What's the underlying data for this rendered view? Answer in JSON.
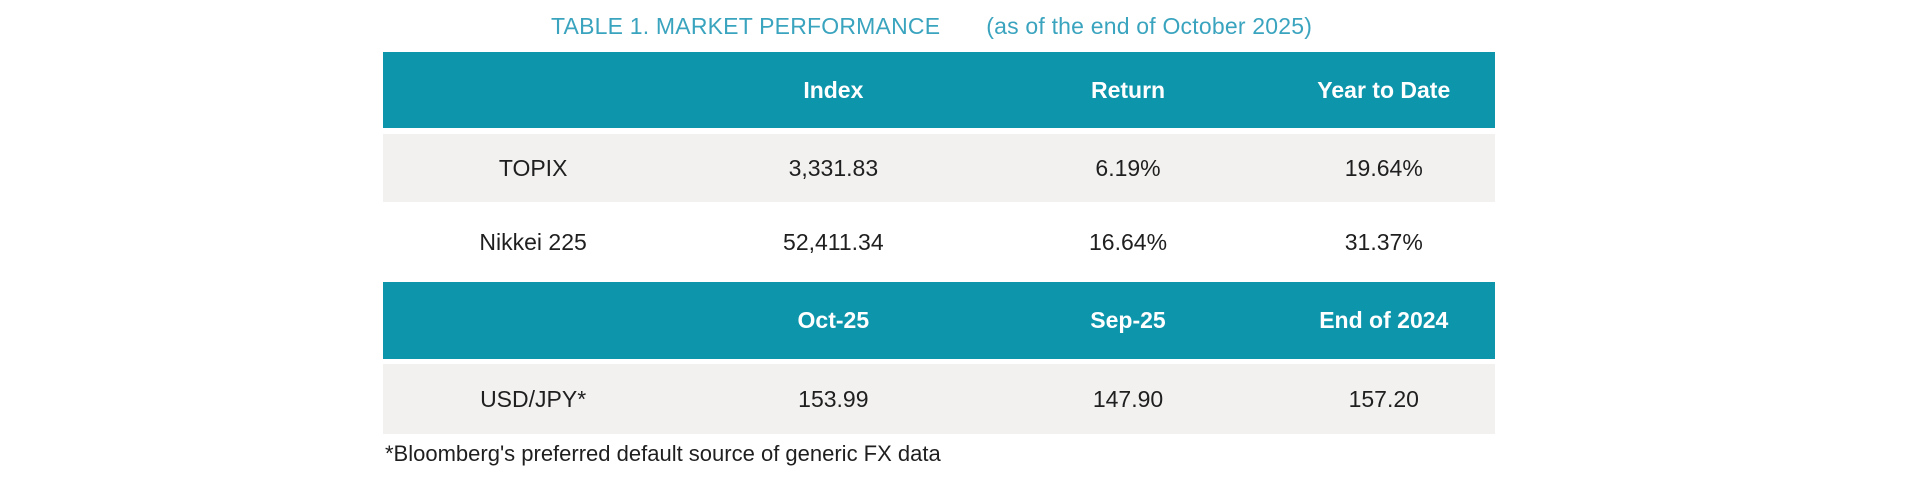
{
  "title": {
    "main": "TABLE 1. MARKET PERFORMANCE",
    "suffix": "(as of the end of October 2025)"
  },
  "colors": {
    "header_bg": "#0D95AC",
    "title_text": "#3AA4BF",
    "alt_row_bg": "#F2F1F0",
    "header_text": "#FFFFFF",
    "body_text": "#1F1F1F"
  },
  "table1": {
    "headers": [
      "",
      "Index",
      "Return",
      "Year to Date"
    ],
    "rows": [
      {
        "label": "TOPIX",
        "values": [
          "3,331.83",
          "6.19%",
          "19.64%"
        ]
      },
      {
        "label": "Nikkei 225",
        "values": [
          "52,411.34",
          "16.64%",
          "31.37%"
        ]
      }
    ]
  },
  "table2": {
    "headers": [
      "",
      "Oct-25",
      "Sep-25",
      "End of 2024"
    ],
    "rows": [
      {
        "label": "USD/JPY*",
        "values": [
          "153.99",
          "147.90",
          "157.20"
        ]
      }
    ]
  },
  "footnote": "*Bloomberg's preferred default source of generic FX data",
  "chart_data": [
    {
      "type": "table",
      "title": "TABLE 1. MARKET PERFORMANCE (as of the end of October 2025)",
      "columns": [
        "",
        "Index",
        "Return",
        "Year to Date"
      ],
      "rows": [
        [
          "TOPIX",
          "3,331.83",
          "6.19%",
          "19.64%"
        ],
        [
          "Nikkei 225",
          "52,411.34",
          "16.64%",
          "31.37%"
        ]
      ]
    },
    {
      "type": "table",
      "columns": [
        "",
        "Oct-25",
        "Sep-25",
        "End of 2024"
      ],
      "rows": [
        [
          "USD/JPY*",
          "153.99",
          "147.90",
          "157.20"
        ]
      ],
      "footnote": "*Bloomberg's preferred default source of generic FX data"
    }
  ]
}
